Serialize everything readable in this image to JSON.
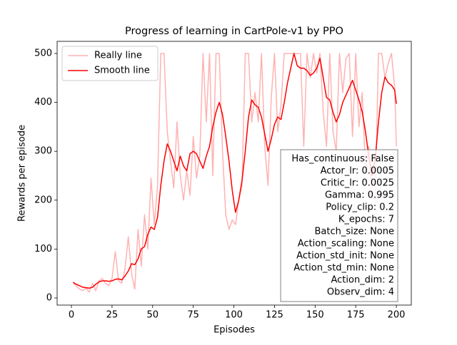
{
  "chart_data": {
    "type": "line",
    "title": "Progress of learning in CartPole-v1 by PPO",
    "xlabel": "Episodes",
    "ylabel": "Rewards per episode",
    "x": [
      1,
      3,
      5,
      7,
      9,
      11,
      13,
      15,
      17,
      19,
      21,
      23,
      25,
      27,
      29,
      31,
      33,
      35,
      37,
      39,
      41,
      43,
      45,
      47,
      49,
      51,
      53,
      55,
      57,
      59,
      61,
      63,
      65,
      67,
      69,
      71,
      73,
      75,
      77,
      79,
      81,
      83,
      85,
      87,
      89,
      91,
      93,
      95,
      97,
      99,
      101,
      103,
      105,
      107,
      109,
      111,
      113,
      115,
      117,
      119,
      121,
      123,
      125,
      127,
      129,
      131,
      133,
      135,
      137,
      139,
      141,
      143,
      145,
      147,
      149,
      151,
      153,
      155,
      157,
      159,
      161,
      163,
      165,
      167,
      169,
      171,
      173,
      175,
      177,
      179,
      181,
      183,
      185,
      187,
      189,
      191,
      193,
      195,
      197,
      199,
      200
    ],
    "series": [
      {
        "name": "Really line",
        "color": "#ffb2b2",
        "values": [
          30,
          25,
          18,
          15,
          20,
          12,
          30,
          15,
          35,
          40,
          30,
          25,
          40,
          95,
          35,
          30,
          60,
          125,
          50,
          18,
          140,
          65,
          170,
          100,
          245,
          150,
          230,
          500,
          500,
          340,
          280,
          225,
          360,
          250,
          200,
          260,
          210,
          330,
          245,
          290,
          500,
          360,
          500,
          250,
          500,
          500,
          300,
          170,
          140,
          160,
          150,
          200,
          230,
          500,
          500,
          360,
          420,
          360,
          500,
          310,
          230,
          410,
          500,
          340,
          395,
          500,
          500,
          500,
          500,
          500,
          500,
          310,
          500,
          450,
          500,
          460,
          500,
          380,
          310,
          500,
          340,
          300,
          500,
          420,
          490,
          500,
          330,
          500,
          350,
          420,
          260,
          310,
          210,
          200,
          500,
          500,
          450,
          480,
          500,
          430,
          310
        ]
      },
      {
        "name": "Smooth line",
        "color": "#ff0000",
        "values": [
          32,
          28,
          25,
          22,
          21,
          20,
          22,
          28,
          33,
          35,
          35,
          34,
          35,
          38,
          39,
          37,
          45,
          55,
          70,
          68,
          80,
          100,
          105,
          130,
          145,
          140,
          165,
          230,
          280,
          315,
          300,
          280,
          260,
          290,
          270,
          260,
          295,
          300,
          295,
          280,
          265,
          290,
          310,
          350,
          380,
          400,
          375,
          330,
          280,
          220,
          175,
          200,
          240,
          300,
          370,
          405,
          395,
          390,
          370,
          335,
          300,
          325,
          355,
          370,
          365,
          400,
          440,
          470,
          500,
          475,
          470,
          470,
          465,
          455,
          460,
          470,
          490,
          450,
          410,
          405,
          380,
          360,
          375,
          400,
          415,
          430,
          445,
          425,
          405,
          380,
          340,
          290,
          250,
          285,
          360,
          420,
          452,
          440,
          435,
          425,
          397
        ]
      }
    ],
    "xlim": [
      -8.8,
      209.2
    ],
    "ylim": [
      -14.6,
      524.8
    ],
    "xticks": [
      0,
      25,
      50,
      75,
      100,
      125,
      150,
      175,
      200
    ],
    "yticks": [
      0,
      100,
      200,
      300,
      400,
      500
    ],
    "legend": "upper left",
    "annotation": [
      "Has_continuous: False",
      "Actor_lr: 0.0005",
      "Critic_lr: 0.0025",
      "Gamma: 0.995",
      "Policy_clip: 0.2",
      "K_epochs: 7",
      "Batch_size: None",
      "Action_scaling: None",
      "Action_std_init: None",
      "Action_std_min: None",
      "Action_dim: 2",
      "Observ_dim: 4"
    ]
  }
}
